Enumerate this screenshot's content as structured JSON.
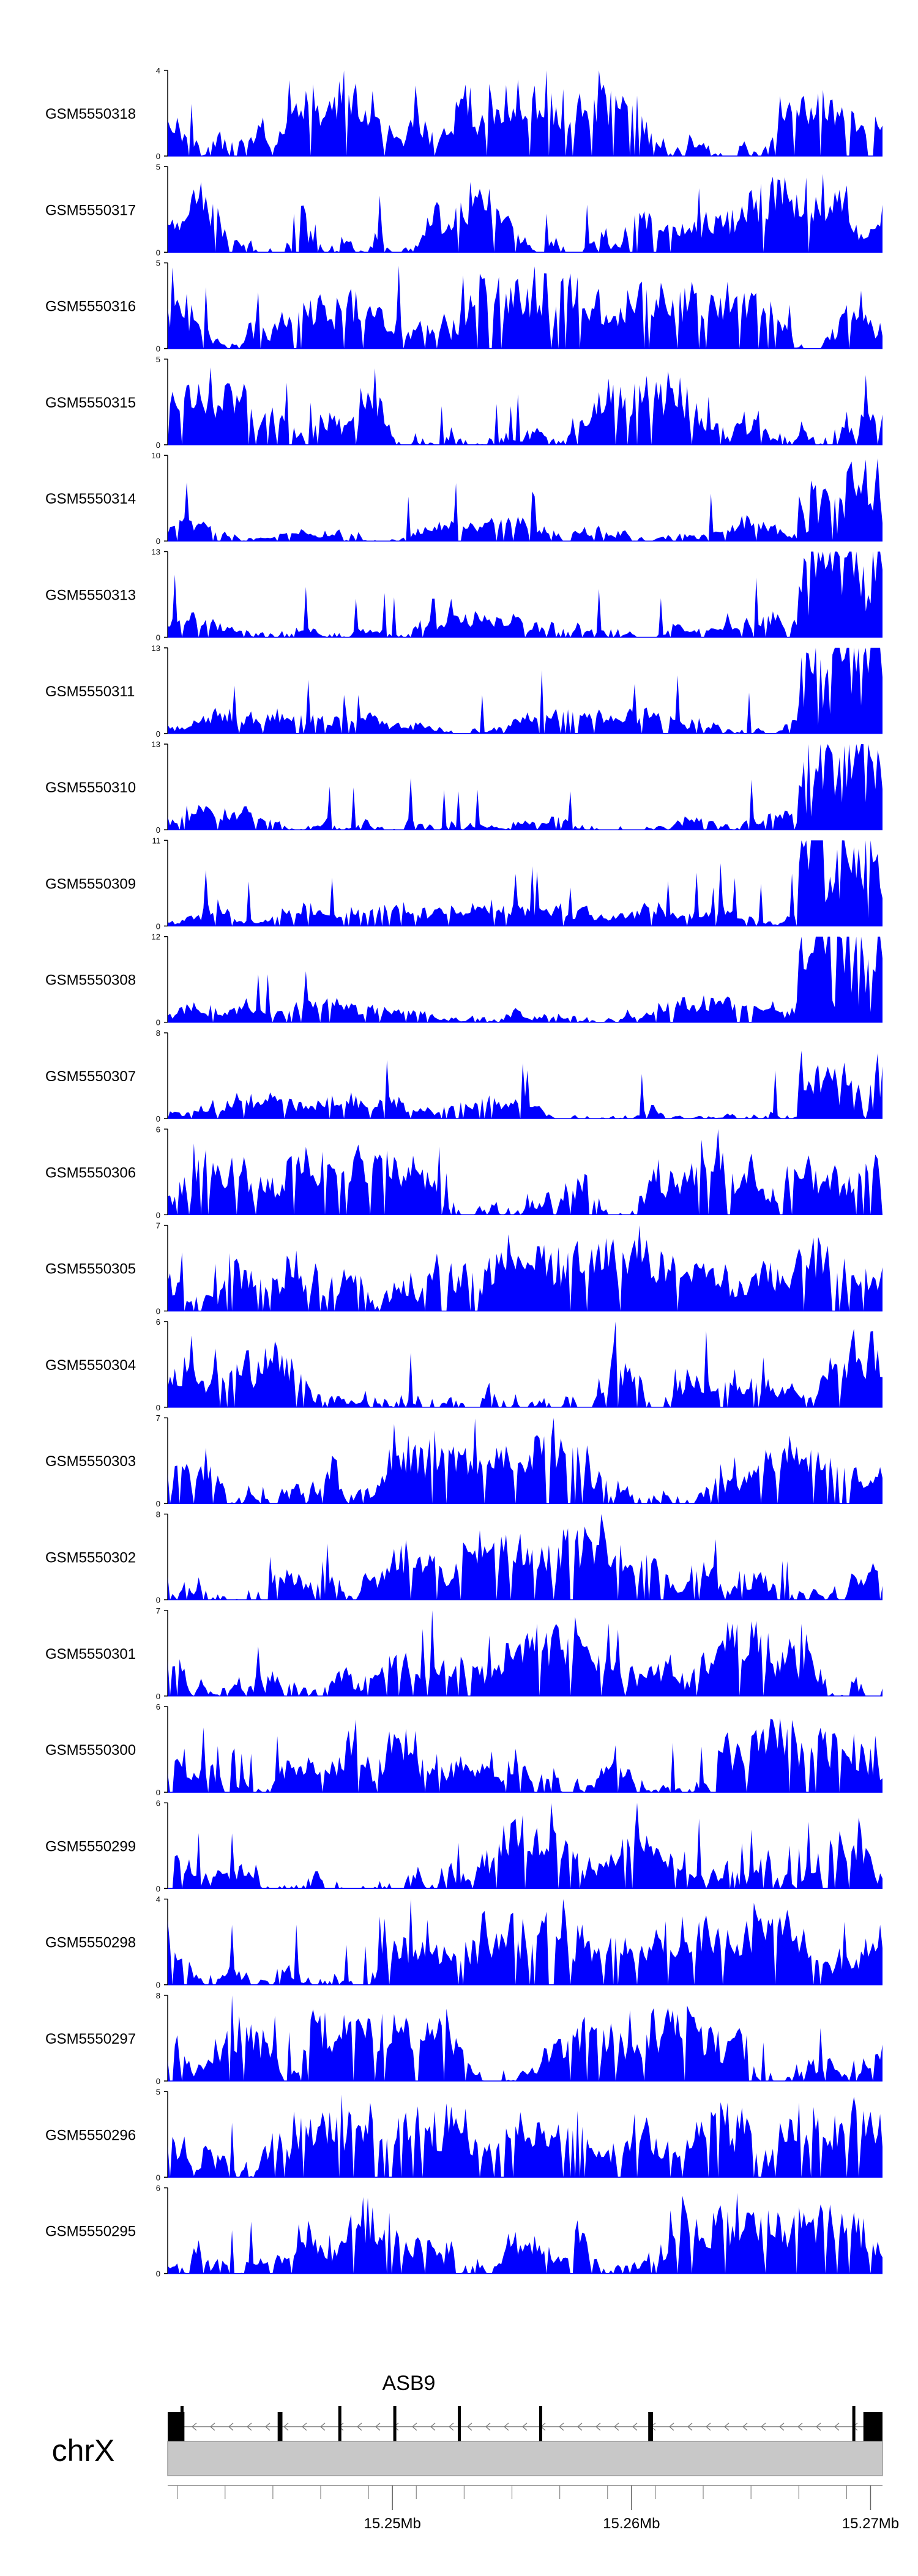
{
  "chart_data": {
    "type": "area",
    "colors": {
      "signal": "#0000ff",
      "axis": "#000000",
      "chrom_bar": "#c8c8c8",
      "gene": "#000000",
      "intron_arrow": "#7a7a7a"
    },
    "x_range_mb": [
      15.2406,
      15.2705
    ],
    "tracks": [
      {
        "name": "GSM5550318",
        "ymax": 4,
        "ytick_labels": [
          "0",
          "4"
        ]
      },
      {
        "name": "GSM5550317",
        "ymax": 5,
        "ytick_labels": [
          "0",
          "5"
        ]
      },
      {
        "name": "GSM5550316",
        "ymax": 5,
        "ytick_labels": [
          "0",
          "5"
        ]
      },
      {
        "name": "GSM5550315",
        "ymax": 5,
        "ytick_labels": [
          "0",
          "5"
        ]
      },
      {
        "name": "GSM5550314",
        "ymax": 10,
        "ytick_labels": [
          "0",
          "10"
        ]
      },
      {
        "name": "GSM5550313",
        "ymax": 13,
        "ytick_labels": [
          "0",
          "13"
        ]
      },
      {
        "name": "GSM5550311",
        "ymax": 13,
        "ytick_labels": [
          "0",
          "13"
        ]
      },
      {
        "name": "GSM5550310",
        "ymax": 13,
        "ytick_labels": [
          "0",
          "13"
        ]
      },
      {
        "name": "GSM5550309",
        "ymax": 11,
        "ytick_labels": [
          "0",
          "11"
        ]
      },
      {
        "name": "GSM5550308",
        "ymax": 12,
        "ytick_labels": [
          "0",
          "12"
        ]
      },
      {
        "name": "GSM5550307",
        "ymax": 8,
        "ytick_labels": [
          "0",
          "8"
        ]
      },
      {
        "name": "GSM5550306",
        "ymax": 6,
        "ytick_labels": [
          "0",
          "6"
        ]
      },
      {
        "name": "GSM5550305",
        "ymax": 7,
        "ytick_labels": [
          "0",
          "7"
        ]
      },
      {
        "name": "GSM5550304",
        "ymax": 6,
        "ytick_labels": [
          "0",
          "6"
        ]
      },
      {
        "name": "GSM5550303",
        "ymax": 7,
        "ytick_labels": [
          "0",
          "7"
        ]
      },
      {
        "name": "GSM5550302",
        "ymax": 8,
        "ytick_labels": [
          "0",
          "8"
        ]
      },
      {
        "name": "GSM5550301",
        "ymax": 7,
        "ytick_labels": [
          "0",
          "7"
        ]
      },
      {
        "name": "GSM5550300",
        "ymax": 6,
        "ytick_labels": [
          "0",
          "6"
        ]
      },
      {
        "name": "GSM5550299",
        "ymax": 6,
        "ytick_labels": [
          "0",
          "6"
        ]
      },
      {
        "name": "GSM5550298",
        "ymax": 4,
        "ytick_labels": [
          "0",
          "4"
        ]
      },
      {
        "name": "GSM5550297",
        "ymax": 8,
        "ytick_labels": [
          "0",
          "8"
        ]
      },
      {
        "name": "GSM5550296",
        "ymax": 5,
        "ytick_labels": [
          "0",
          "5"
        ]
      },
      {
        "name": "GSM5550295",
        "ymax": 6,
        "ytick_labels": [
          "0",
          "6"
        ]
      }
    ],
    "gene": {
      "name": "ASB9",
      "strand": "-",
      "start_mb": 15.2406,
      "end_mb": 15.2705,
      "exons_mb": [
        [
          15.2406,
          15.2413
        ],
        [
          15.2452,
          15.2454
        ],
        [
          15.2607,
          15.2609
        ],
        [
          15.2697,
          15.2705
        ]
      ],
      "exon_lines_mb": [
        15.2412,
        15.2478,
        15.2501,
        15.2528,
        15.2562,
        15.2693
      ]
    },
    "chromosome": "chrX",
    "x_ticks_mb": [
      15.25,
      15.26,
      15.27
    ],
    "x_tick_labels": [
      "15.25Mb",
      "15.26Mb",
      "15.27Mb"
    ],
    "minor_ticks_mb": [
      15.241,
      15.243,
      15.245,
      15.247,
      15.249,
      15.251,
      15.253,
      15.255,
      15.257,
      15.259,
      15.261,
      15.263,
      15.265,
      15.267,
      15.269
    ]
  }
}
